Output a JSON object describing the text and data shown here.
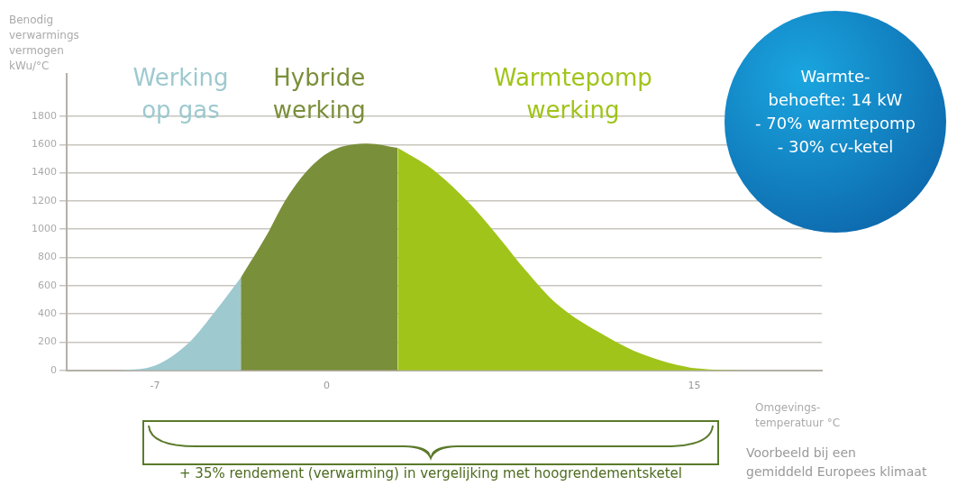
{
  "chart_data": {
    "type": "area",
    "ylabel": "Benodig verwarmings vermogen kWu/°C",
    "xlabel": "Omgevings-temperatuur °C",
    "xlim": [
      -10.6,
      20.2
    ],
    "xticks": [
      -7,
      0,
      15
    ],
    "ylim": [
      0,
      2100
    ],
    "yticks": [
      0,
      200,
      400,
      600,
      800,
      1000,
      1200,
      1400,
      1600,
      1800
    ],
    "grid": "y",
    "legend": false,
    "series": [
      {
        "name": "Werking op gas",
        "color": "#9dc9cf",
        "x": [
          -8.4,
          -7.0,
          -5.6,
          -4.5,
          -3.5
        ],
        "values": [
          0,
          34,
          199,
          428,
          657
        ]
      },
      {
        "name": "Hybride werking",
        "color": "#7a8f3a",
        "x": [
          -3.5,
          -2.4,
          -1.7,
          -0.8,
          0.2,
          1.7,
          2.9
        ],
        "values": [
          657,
          971,
          1199,
          1413,
          1556,
          1607,
          1576
        ]
      },
      {
        "name": "Warmtepomp werking",
        "color": "#a0c41a",
        "x": [
          2.9,
          4.3,
          5.9,
          7.1,
          8.1,
          9.4,
          11.4,
          12.9,
          15.1,
          17.2
        ],
        "values": [
          1576,
          1427,
          1170,
          927,
          713,
          470,
          242,
          113,
          14,
          0
        ]
      }
    ],
    "annotations": [
      "Warmte-\nbehoefte: 14 kW\n- 70% warmtepomp\n- 30% cv-ketel",
      "+ 35% rendement (verwarming) in vergelijking met hoogrendementsketel",
      "Voorbeeld bij een\ngemiddeld Europees klimaat"
    ]
  }
}
